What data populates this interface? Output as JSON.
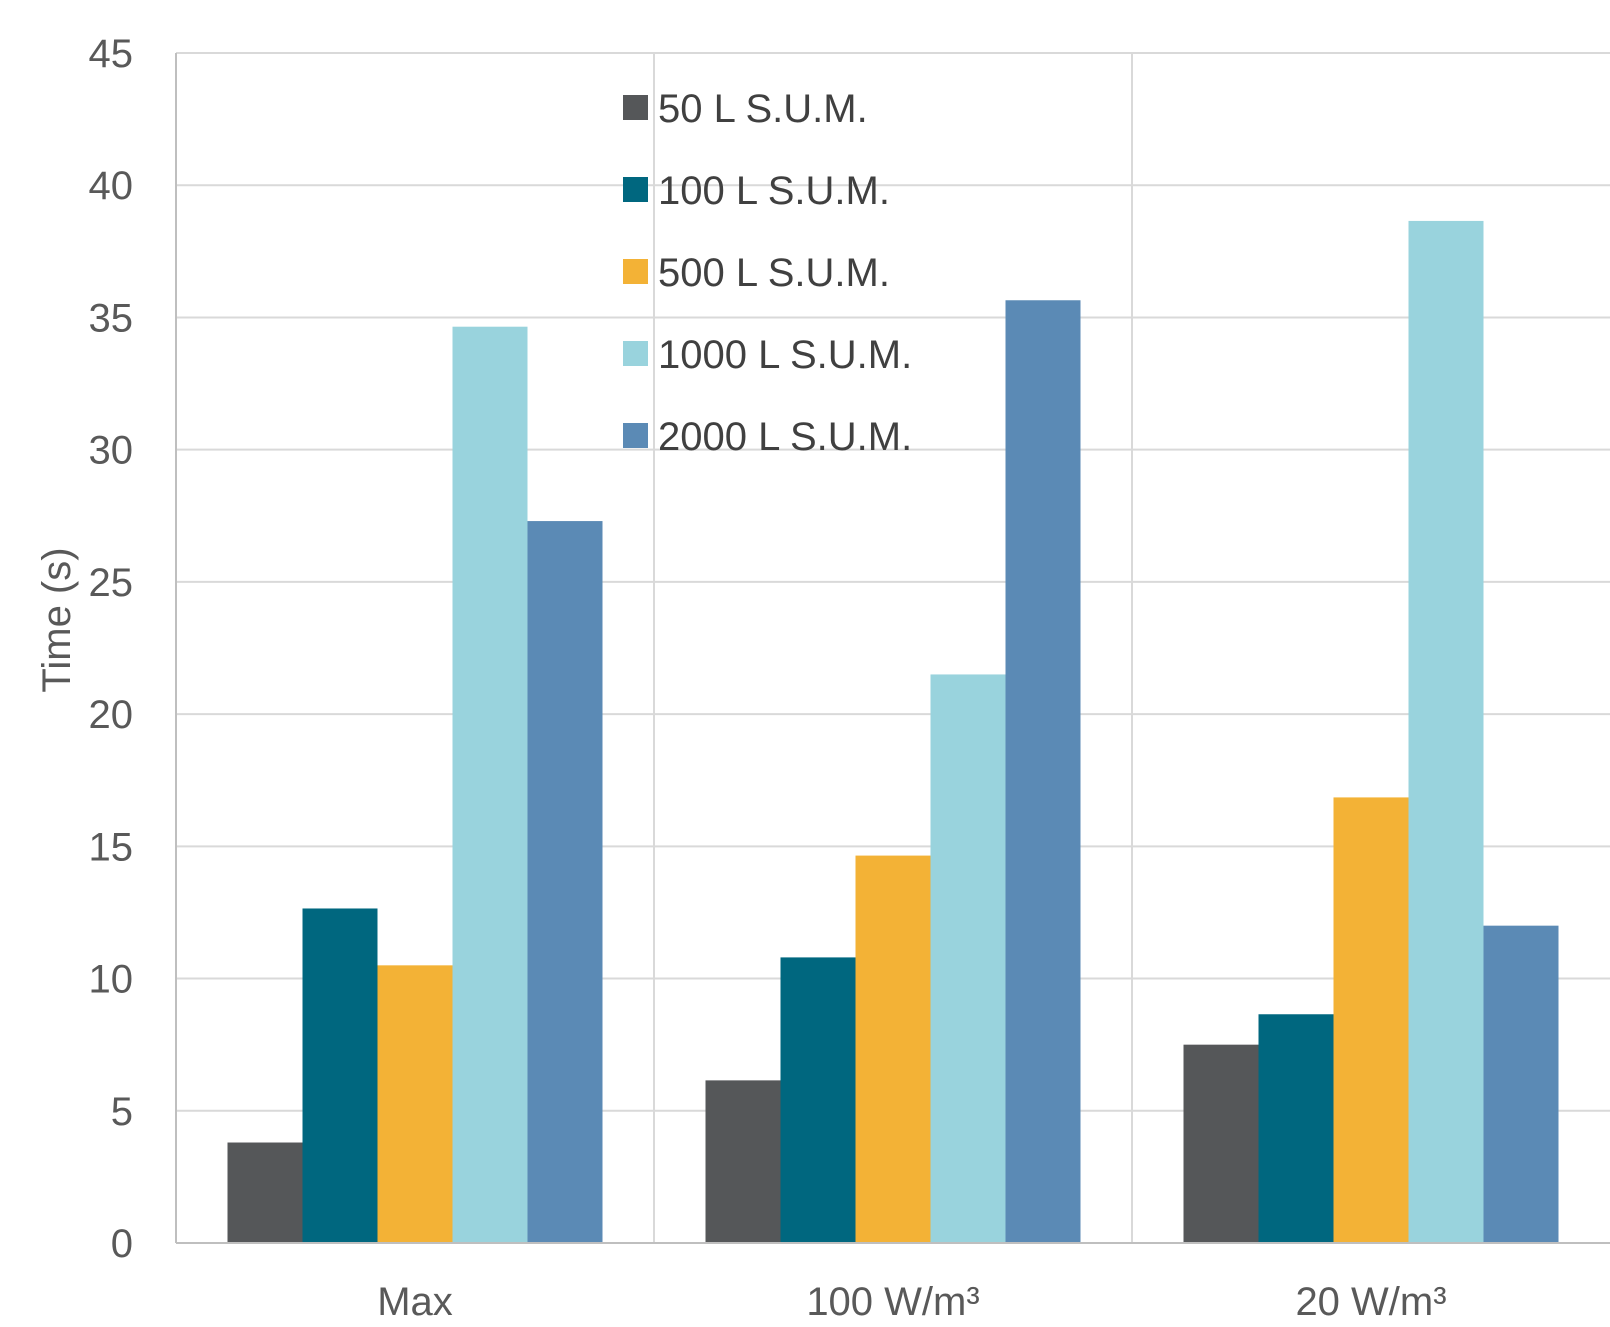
{
  "chart_data": {
    "type": "bar",
    "title": "",
    "xlabel": "",
    "ylabel": "Time (s)",
    "ylim": [
      0,
      45
    ],
    "yticks": [
      0,
      5,
      10,
      15,
      20,
      25,
      30,
      35,
      40,
      45
    ],
    "grid": true,
    "legend_position": "top-center",
    "categories": [
      "Max",
      "100 W/m³",
      "20 W/m³"
    ],
    "series": [
      {
        "name": "50 L S.U.M.",
        "color": "#555759",
        "values": [
          3.8,
          6.15,
          7.5
        ]
      },
      {
        "name": "100 L S.U.M.",
        "color": "#00677f",
        "values": [
          12.65,
          10.8,
          8.65
        ]
      },
      {
        "name": "500 L S.U.M.",
        "color": "#f3b236",
        "values": [
          10.5,
          14.65,
          16.85
        ]
      },
      {
        "name": "1000 L S.U.M.",
        "color": "#99d3dd",
        "values": [
          34.65,
          21.5,
          38.65
        ]
      },
      {
        "name": "2000 L S.U.M.",
        "color": "#5b8ab5",
        "values": [
          27.3,
          35.65,
          12.0
        ]
      }
    ]
  }
}
